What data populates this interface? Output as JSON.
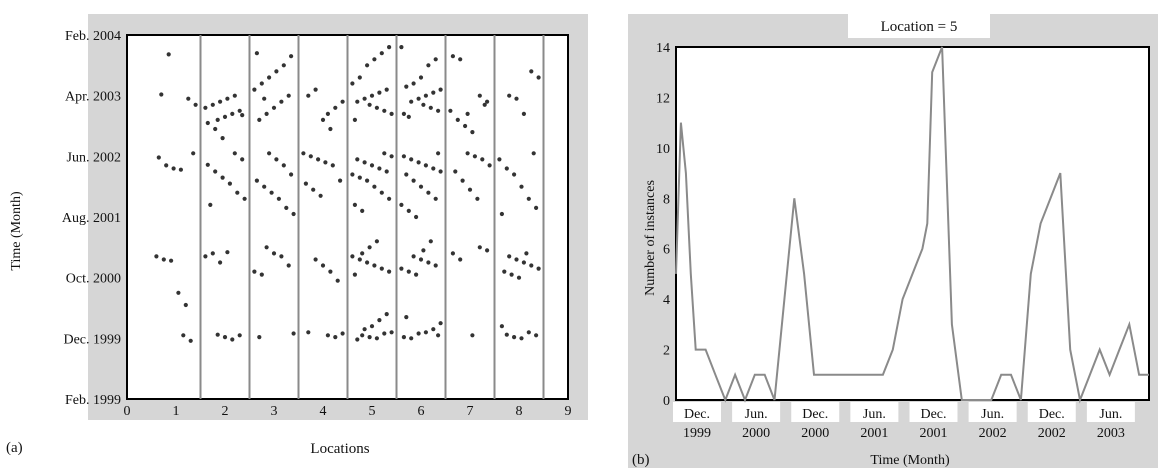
{
  "chart_data": [
    {
      "type": "scatter",
      "panel_label": "(a)",
      "xlabel": "Locations",
      "ylabel": "Time (Month)",
      "xticks": [
        "0",
        "1",
        "2",
        "3",
        "4",
        "5",
        "6",
        "7",
        "8",
        "9"
      ],
      "xlim": [
        0,
        9
      ],
      "yticks": [
        {
          "label": "Feb. 1999",
          "value": 0
        },
        {
          "label": "Dec. 1999",
          "value": 10
        },
        {
          "label": "Oct. 2000",
          "value": 20
        },
        {
          "label": "Aug. 2001",
          "value": 30
        },
        {
          "label": "Jun. 2002",
          "value": 40
        },
        {
          "label": "Apr. 2003",
          "value": 50
        },
        {
          "label": "Feb. 2004",
          "value": 60
        }
      ],
      "ylim": [
        0,
        60
      ],
      "ytick_unit": "months since Feb. 1999",
      "separators": [
        1.5,
        2.5,
        3.5,
        4.5,
        5.5,
        6.5,
        7.5,
        8.5
      ],
      "colors": {
        "points": "#333333",
        "separators": "#8a8a8a",
        "frame_bg": "#d6d6d6"
      },
      "clusters": [
        {
          "location": 1,
          "months": [
            10.5,
            9.6,
            23.5,
            23.0,
            22.8,
            17.5,
            15.5,
            40.5,
            39.8,
            38.5,
            38.0,
            37.8,
            49.5,
            48.5,
            50.2,
            56.8
          ]
        },
        {
          "location": 2,
          "months": [
            10.6,
            10.2,
            9.8,
            10.5,
            23.5,
            24.0,
            22.5,
            24.2,
            40.5,
            39.5,
            38.6,
            37.5,
            36.5,
            35.5,
            34.0,
            33.0,
            32.0,
            46.0,
            46.5,
            47.0,
            47.5,
            48.0,
            48.5,
            49.0,
            49.5,
            50.0,
            46.8,
            45.5,
            44.5,
            43.0
          ]
        },
        {
          "location": 3,
          "months": [
            10.8,
            10.2,
            25.0,
            24.0,
            23.5,
            22.0,
            21.0,
            20.5,
            40.5,
            39.5,
            38.5,
            37.0,
            36.0,
            35.0,
            34.0,
            33.0,
            31.5,
            30.5,
            46.0,
            47.0,
            48.0,
            49.0,
            50.0,
            51.0,
            52.0,
            53.0,
            54.0,
            55.0,
            56.5,
            57.0,
            49.5
          ]
        },
        {
          "location": 4,
          "months": [
            10.5,
            10.2,
            10.8,
            11.0,
            23.0,
            22.0,
            21.0,
            19.5,
            40.5,
            40.0,
            39.5,
            39.0,
            38.5,
            36.0,
            35.5,
            34.5,
            33.5,
            47.0,
            48.0,
            49.0,
            50.0,
            51.0,
            46.0,
            44.5
          ]
        },
        {
          "location": 5,
          "months": [
            10.5,
            10.2,
            10.0,
            10.8,
            11.0,
            9.8,
            11.5,
            12.0,
            13.0,
            14.0,
            23.5,
            23.0,
            22.5,
            22.0,
            21.5,
            21.0,
            20.5,
            24.0,
            25.0,
            26.0,
            40.5,
            40.0,
            39.5,
            39.0,
            38.5,
            38.0,
            37.5,
            37.0,
            36.5,
            36.0,
            35.0,
            34.0,
            33.0,
            32.0,
            31.0,
            48.5,
            48.0,
            47.5,
            47.0,
            49.0,
            49.5,
            50.0,
            50.5,
            51.0,
            52.0,
            53.0,
            55.0,
            56.0,
            57.0,
            58.0,
            46.0
          ]
        },
        {
          "location": 6,
          "months": [
            10.5,
            10.2,
            10.0,
            10.8,
            11.0,
            11.5,
            12.5,
            13.5,
            23.5,
            23.0,
            22.5,
            22.0,
            21.5,
            21.0,
            20.5,
            24.5,
            26.0,
            40.5,
            40.0,
            39.5,
            39.0,
            38.5,
            38.0,
            37.5,
            37.0,
            36.0,
            35.0,
            34.0,
            33.0,
            32.0,
            31.0,
            30.0,
            48.5,
            48.0,
            47.5,
            47.0,
            49.0,
            49.5,
            50.0,
            50.5,
            51.0,
            51.5,
            52.0,
            53.0,
            55.0,
            56.0,
            58.0,
            46.5
          ]
        },
        {
          "location": 7,
          "months": [
            10.5,
            25.0,
            24.5,
            24.0,
            23.0,
            40.5,
            40.0,
            39.5,
            38.5,
            37.5,
            36.0,
            34.5,
            33.0,
            48.5,
            47.5,
            46.0,
            45.0,
            44.0,
            50.0,
            49.0,
            56.5,
            56.0,
            47.0
          ]
        },
        {
          "location": 8,
          "months": [
            10.6,
            10.2,
            10.0,
            11.0,
            10.5,
            12.0,
            23.5,
            23.0,
            22.5,
            22.0,
            21.5,
            21.0,
            20.5,
            20.0,
            24.0,
            40.5,
            39.5,
            38.0,
            37.0,
            35.0,
            33.0,
            31.5,
            30.5,
            50.0,
            49.5,
            47.0,
            54.0,
            53.0
          ]
        }
      ]
    },
    {
      "type": "line",
      "panel_label": "(b)",
      "title": "Location = 5",
      "xlabel": "Time (Month)",
      "ylabel": "Number of instances",
      "ylim": [
        0,
        14
      ],
      "yticks": [
        "0",
        "2",
        "4",
        "6",
        "8",
        "10",
        "12",
        "14"
      ],
      "xlim": [
        0,
        48
      ],
      "x_unit": "months since Dec. 1999",
      "xticks": [
        {
          "line1": "Dec.",
          "line2": "1999",
          "value": 0
        },
        {
          "line1": "Jun.",
          "line2": "2000",
          "value": 6
        },
        {
          "line1": "Dec.",
          "line2": "2000",
          "value": 12
        },
        {
          "line1": "Jun.",
          "line2": "2001",
          "value": 18
        },
        {
          "line1": "Dec.",
          "line2": "2001",
          "value": 24
        },
        {
          "line1": "Jun.",
          "line2": "2002",
          "value": 30
        },
        {
          "line1": "Dec.",
          "line2": "2002",
          "value": 36
        },
        {
          "line1": "Jun.",
          "line2": "2003",
          "value": 42
        }
      ],
      "colors": {
        "line": "#8a8a8a",
        "title_bg": "#ffffff",
        "frame_bg": "#d6d6d6"
      },
      "series": [
        {
          "x": [
            0,
            0.5,
            1,
            1.5,
            2,
            3,
            4,
            5,
            6,
            7,
            8,
            9,
            10,
            11,
            12,
            13,
            14,
            15,
            16,
            17,
            18,
            19,
            20,
            21,
            22,
            23,
            24,
            25,
            25.5,
            26,
            27,
            28,
            29,
            30,
            31,
            32,
            33,
            34,
            35,
            36,
            37,
            38,
            39,
            40,
            41,
            42,
            43,
            44,
            45,
            46,
            47,
            48
          ],
          "values": [
            5,
            11,
            9,
            5,
            2,
            2,
            1,
            0,
            1,
            0,
            1,
            1,
            0,
            4,
            8,
            5,
            1,
            1,
            1,
            1,
            1,
            1,
            1,
            1,
            2,
            4,
            5,
            6,
            7,
            13,
            14,
            3,
            0,
            0,
            0,
            0,
            1,
            1,
            0,
            5,
            7,
            8,
            9,
            2,
            0,
            1,
            2,
            1,
            2,
            3,
            1,
            1
          ]
        }
      ]
    }
  ]
}
